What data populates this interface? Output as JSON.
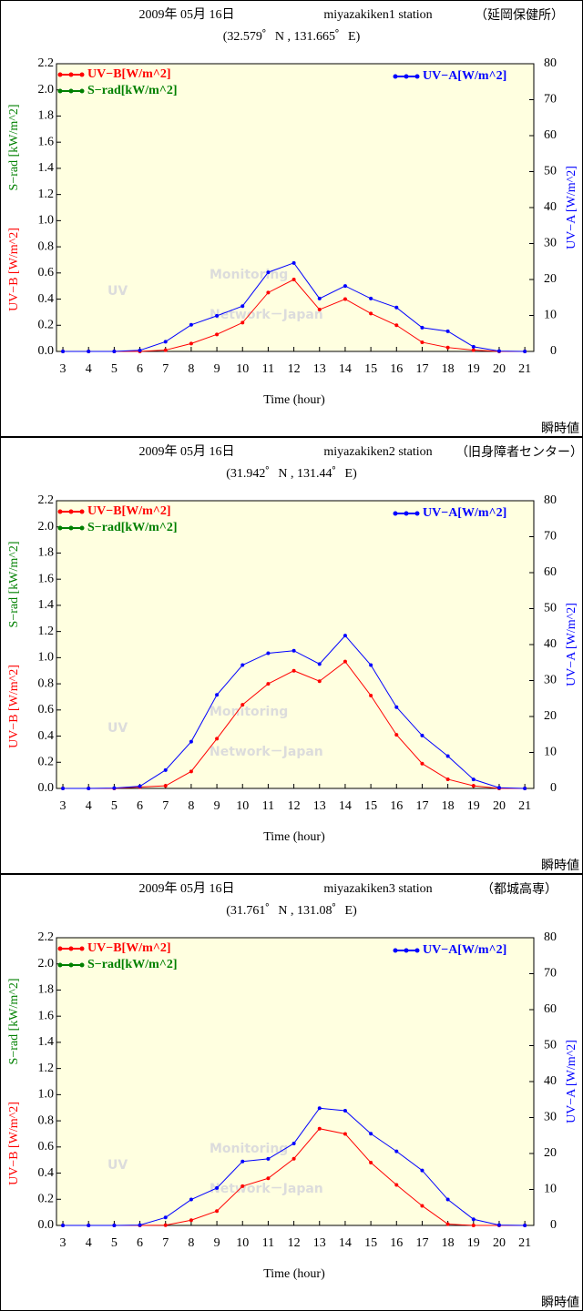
{
  "chart_data": [
    {
      "type": "line",
      "title": "2009年 05月 16日",
      "station": "miyazakiken1 station",
      "site": "（延岡保健所）",
      "subtitle": "(32.579゜N , 131.665゜E)",
      "xlabel": "Time (hour)",
      "note": "瞬時値",
      "watermark": [
        "UV",
        "Monitoring",
        "Network－Japan"
      ],
      "x": [
        3,
        4,
        5,
        6,
        7,
        8,
        9,
        10,
        11,
        12,
        13,
        14,
        15,
        16,
        17,
        18,
        19,
        20,
        21
      ],
      "xlim": [
        2.75,
        21.35
      ],
      "xticks": [
        3,
        4,
        5,
        6,
        7,
        8,
        9,
        10,
        11,
        12,
        13,
        14,
        15,
        16,
        17,
        18,
        19,
        20,
        21
      ],
      "ylim": [
        0,
        2.2
      ],
      "yticks": [
        {
          "value": 0,
          "label": "0.0"
        },
        0.2,
        0.4,
        0.6,
        0.8,
        {
          "value": 1,
          "label": "1.0"
        },
        1.2,
        1.4,
        1.6,
        1.8,
        {
          "value": 2,
          "label": "2.0"
        },
        2.2
      ],
      "y2lim": [
        0,
        80
      ],
      "y2ticks": [
        0,
        10,
        20,
        30,
        40,
        50,
        60,
        70,
        80
      ],
      "series": [
        {
          "name": "UV−B[W/m^2]",
          "axis_label": "UV−B [W/m^2]",
          "color": "#ff0000",
          "values": [
            0,
            0,
            0,
            0,
            0.01,
            0.06,
            0.13,
            0.22,
            0.45,
            0.55,
            0.32,
            0.4,
            0.29,
            0.2,
            0.07,
            0.03,
            0.01,
            0,
            0
          ]
        },
        {
          "name": "S−rad[kW/m^2]",
          "axis_label": "S−rad [kW/m^2]",
          "color": "#008000",
          "values": [
            null,
            null,
            null,
            null,
            null,
            null,
            null,
            null,
            null,
            null,
            null,
            null,
            null,
            null,
            null,
            null,
            null,
            null,
            null
          ]
        },
        {
          "name": "UV−A[W/m^2]",
          "axis_label": "UV−A [W/m^2]",
          "color": "#0000ff",
          "axis": "y2",
          "values": [
            0,
            0,
            0,
            0.3,
            2.7,
            7.4,
            9.9,
            12.6,
            22,
            24.6,
            14.7,
            18.2,
            14.7,
            12.2,
            6.6,
            5.6,
            1.3,
            0.1,
            0
          ]
        }
      ]
    },
    {
      "type": "line",
      "title": "2009年 05月 16日",
      "station": "miyazakiken2 station",
      "site": "（旧身障者センター）",
      "subtitle": "(31.942゜N , 131.44゜E)",
      "xlabel": "Time (hour)",
      "note": "瞬時値",
      "watermark": [
        "UV",
        "Monitoring",
        "Network－Japan"
      ],
      "x": [
        3,
        4,
        5,
        6,
        7,
        8,
        9,
        10,
        11,
        12,
        13,
        14,
        15,
        16,
        17,
        18,
        19,
        20,
        21
      ],
      "xlim": [
        2.75,
        21.35
      ],
      "xticks": [
        3,
        4,
        5,
        6,
        7,
        8,
        9,
        10,
        11,
        12,
        13,
        14,
        15,
        16,
        17,
        18,
        19,
        20,
        21
      ],
      "ylim": [
        0,
        2.2
      ],
      "yticks": [
        {
          "value": 0,
          "label": "0.0"
        },
        0.2,
        0.4,
        0.6,
        0.8,
        {
          "value": 1,
          "label": "1.0"
        },
        1.2,
        1.4,
        1.6,
        1.8,
        {
          "value": 2,
          "label": "2.0"
        },
        2.2
      ],
      "y2lim": [
        0,
        80
      ],
      "y2ticks": [
        0,
        10,
        20,
        30,
        40,
        50,
        60,
        70,
        80
      ],
      "series": [
        {
          "name": "UV−B[W/m^2]",
          "axis_label": "UV−B [W/m^2]",
          "color": "#ff0000",
          "values": [
            0,
            0,
            0,
            0.01,
            0.02,
            0.13,
            0.38,
            0.64,
            0.8,
            0.9,
            0.82,
            0.97,
            0.71,
            0.41,
            0.19,
            0.07,
            0.02,
            0,
            0
          ]
        },
        {
          "name": "S−rad[kW/m^2]",
          "axis_label": "S−rad [kW/m^2]",
          "color": "#008000",
          "values": [
            null,
            null,
            null,
            null,
            null,
            null,
            null,
            null,
            null,
            null,
            null,
            null,
            null,
            null,
            null,
            null,
            null,
            null,
            null
          ]
        },
        {
          "name": "UV−A[W/m^2]",
          "axis_label": "UV−A [W/m^2]",
          "color": "#0000ff",
          "axis": "y2",
          "values": [
            0,
            0,
            0.1,
            0.6,
            5.1,
            13,
            26,
            34.3,
            37.6,
            38.3,
            34.6,
            42.5,
            34.3,
            22.6,
            14.7,
            9,
            2.5,
            0.2,
            0
          ]
        }
      ]
    },
    {
      "type": "line",
      "title": "2009年 05月 16日",
      "station": "miyazakiken3 station",
      "site": "（都城高専）",
      "subtitle": "(31.761゜N , 131.08゜E)",
      "xlabel": "Time (hour)",
      "note": "瞬時値",
      "watermark": [
        "UV",
        "Monitoring",
        "Network－Japan"
      ],
      "x": [
        3,
        4,
        5,
        6,
        7,
        8,
        9,
        10,
        11,
        12,
        13,
        14,
        15,
        16,
        17,
        18,
        19,
        20,
        21
      ],
      "xlim": [
        2.75,
        21.35
      ],
      "xticks": [
        3,
        4,
        5,
        6,
        7,
        8,
        9,
        10,
        11,
        12,
        13,
        14,
        15,
        16,
        17,
        18,
        19,
        20,
        21
      ],
      "ylim": [
        0,
        2.2
      ],
      "yticks": [
        {
          "value": 0,
          "label": "0.0"
        },
        0.2,
        0.4,
        0.6,
        0.8,
        {
          "value": 1,
          "label": "1.0"
        },
        1.2,
        1.4,
        1.6,
        1.8,
        {
          "value": 2,
          "label": "2.0"
        },
        2.2
      ],
      "y2lim": [
        0,
        80
      ],
      "y2ticks": [
        0,
        10,
        20,
        30,
        40,
        50,
        60,
        70,
        80
      ],
      "series": [
        {
          "name": "UV−B[W/m^2]",
          "axis_label": "UV−B [W/m^2]",
          "color": "#ff0000",
          "values": [
            0,
            0,
            0,
            0,
            0.002,
            0.04,
            0.11,
            0.3,
            0.36,
            0.51,
            0.74,
            0.7,
            0.48,
            0.31,
            0.15,
            0.01,
            0,
            0,
            0
          ]
        },
        {
          "name": "S−rad[kW/m^2]",
          "axis_label": "S−rad [kW/m^2]",
          "color": "#008000",
          "values": [
            null,
            null,
            null,
            null,
            null,
            null,
            null,
            null,
            null,
            null,
            null,
            null,
            null,
            null,
            null,
            null,
            null,
            null,
            null
          ]
        },
        {
          "name": "UV−A[W/m^2]",
          "axis_label": "UV−A [W/m^2]",
          "color": "#0000ff",
          "axis": "y2",
          "values": [
            0,
            0,
            0,
            0.1,
            2.2,
            7.2,
            10.4,
            17.8,
            18.5,
            22.8,
            32.6,
            31.9,
            25.5,
            20.6,
            15.3,
            7.2,
            1.7,
            0.1,
            0
          ]
        }
      ]
    }
  ]
}
